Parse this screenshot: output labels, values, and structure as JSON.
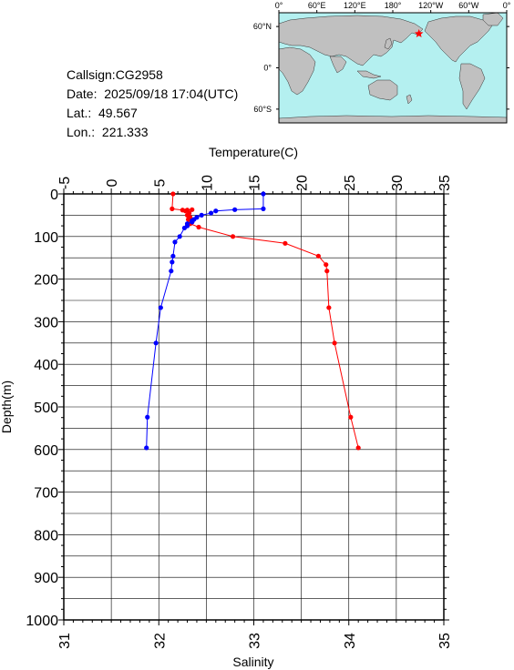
{
  "info": {
    "callsign": "Callsign:CG2958",
    "date": "Date:  2025/09/18 17:04(UTC)",
    "lat": "Lat.:  49.567",
    "lon": "Lon.:  221.333"
  },
  "map": {
    "lon_labels": [
      "0°",
      "60°E",
      "120°E",
      "180°",
      "120°W",
      "60°W",
      "0°"
    ],
    "lat_labels": [
      "60°N",
      "0°",
      "60°S"
    ],
    "station_lon": 221.333,
    "station_lat": 49.567,
    "ocean_color": "#b4f0f0",
    "land_color": "#c0c0c0",
    "marker_color": "#ff0000"
  },
  "chart_data": {
    "type": "line",
    "temp_axis": {
      "label": "Temperature(C)",
      "range": [
        -5,
        35
      ],
      "ticks": [
        "-5",
        "0",
        "5",
        "10",
        "15",
        "20",
        "25",
        "30",
        "35"
      ]
    },
    "sal_axis": {
      "label": "Salinity",
      "range": [
        31,
        35
      ],
      "ticks": [
        "31",
        "32",
        "33",
        "34",
        "35"
      ]
    },
    "depth_axis": {
      "label": "Depth(m)",
      "range": [
        0,
        1000
      ],
      "ticks": [
        "0",
        "100",
        "200",
        "300",
        "400",
        "500",
        "600",
        "700",
        "800",
        "900",
        "1000"
      ]
    },
    "grid": true,
    "series": [
      {
        "axis": "temperature",
        "color": "#ff0000",
        "points": [
          [
            6.5,
            0
          ],
          [
            6.4,
            35
          ],
          [
            7.5,
            38
          ],
          [
            8.0,
            38
          ],
          [
            8.5,
            37
          ],
          [
            7.8,
            40
          ],
          [
            8.2,
            45
          ],
          [
            8.0,
            50
          ],
          [
            8.3,
            55
          ],
          [
            8.1,
            60
          ],
          [
            8.5,
            66
          ],
          [
            8.3,
            70
          ],
          [
            9.2,
            78
          ],
          [
            12.8,
            100
          ],
          [
            18.3,
            116
          ],
          [
            21.8,
            146
          ],
          [
            22.6,
            166
          ],
          [
            22.7,
            181
          ],
          [
            22.9,
            267
          ],
          [
            23.5,
            350
          ],
          [
            25.2,
            524
          ],
          [
            26.0,
            596
          ]
        ]
      },
      {
        "axis": "salinity",
        "color": "#0000ff",
        "points": [
          [
            33.1,
            0
          ],
          [
            33.1,
            35
          ],
          [
            32.8,
            37
          ],
          [
            32.6,
            40
          ],
          [
            32.55,
            45
          ],
          [
            32.45,
            50
          ],
          [
            32.4,
            55
          ],
          [
            32.37,
            60
          ],
          [
            32.35,
            63
          ],
          [
            32.35,
            66
          ],
          [
            32.3,
            70
          ],
          [
            32.3,
            75
          ],
          [
            32.27,
            80
          ],
          [
            32.22,
            100
          ],
          [
            32.17,
            113
          ],
          [
            32.15,
            146
          ],
          [
            32.14,
            160
          ],
          [
            32.13,
            181
          ],
          [
            32.02,
            267
          ],
          [
            31.97,
            350
          ],
          [
            31.88,
            524
          ],
          [
            31.87,
            596
          ]
        ]
      }
    ]
  }
}
